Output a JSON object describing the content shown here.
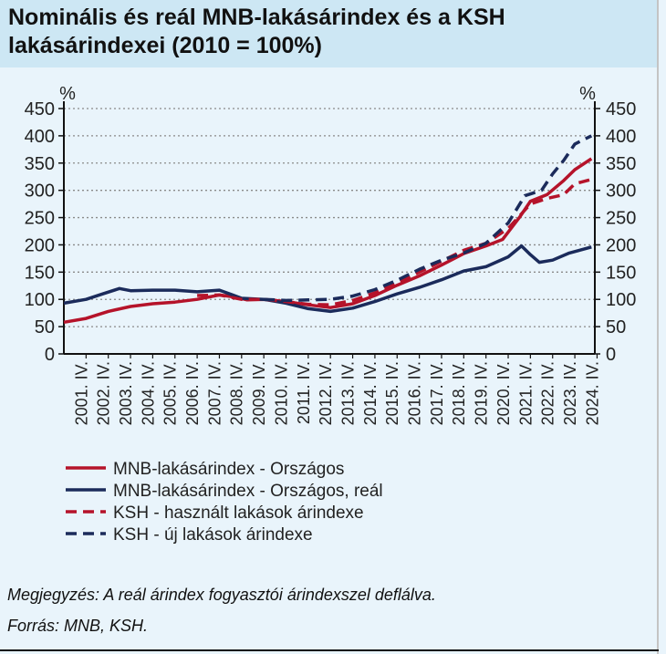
{
  "title": "Nominális és reál MNB-lakásárindex és a KSH lakásárindexei (2010 = 100%)",
  "note": "Megjegyzés: A reál árindex fogyasztói árindexszel deflálva.",
  "source": "Forrás: MNB, KSH.",
  "chart_data": {
    "type": "line",
    "y_unit_left": "%",
    "y_unit_right": "%",
    "ylim": [
      0,
      450
    ],
    "yticks": [
      0,
      50,
      100,
      150,
      200,
      250,
      300,
      350,
      400,
      450
    ],
    "grid": "horizontal dotted",
    "x_tick_labels": [
      "2001. IV.",
      "2002. IV.",
      "2003. IV.",
      "2004. IV.",
      "2005. IV.",
      "2006. IV.",
      "2007. IV.",
      "2008. IV.",
      "2009. IV.",
      "2010. IV.",
      "2011. IV.",
      "2012. IV.",
      "2013. IV.",
      "2014. IV.",
      "2015. IV.",
      "2016. IV.",
      "2017. IV.",
      "2018. IV.",
      "2019. IV.",
      "2020. IV.",
      "2021. IV.",
      "2022. IV.",
      "2023. IV.",
      "2024. IV."
    ],
    "x_start": 2001.0,
    "x_end": 2024.9,
    "legend_position": "bottom",
    "series": [
      {
        "name": "MNB-lakásárindex - Országos",
        "color": "#b5132a",
        "dash": false,
        "points": [
          [
            2001.0,
            58
          ],
          [
            2002.0,
            65
          ],
          [
            2003.0,
            78
          ],
          [
            2004.0,
            87
          ],
          [
            2005.0,
            92
          ],
          [
            2006.0,
            95
          ],
          [
            2007.0,
            100
          ],
          [
            2008.0,
            108
          ],
          [
            2008.75,
            104
          ],
          [
            2009.25,
            99
          ],
          [
            2010.0,
            100
          ],
          [
            2011.0,
            96
          ],
          [
            2012.0,
            90
          ],
          [
            2013.0,
            85
          ],
          [
            2014.0,
            92
          ],
          [
            2015.0,
            107
          ],
          [
            2016.0,
            126
          ],
          [
            2017.0,
            143
          ],
          [
            2018.0,
            163
          ],
          [
            2019.0,
            184
          ],
          [
            2020.0,
            198
          ],
          [
            2020.75,
            210
          ],
          [
            2021.5,
            250
          ],
          [
            2022.0,
            280
          ],
          [
            2022.75,
            292
          ],
          [
            2023.5,
            318
          ],
          [
            2024.0,
            338
          ],
          [
            2024.75,
            358
          ]
        ]
      },
      {
        "name": "MNB-lakásárindex - Országos, reál",
        "color": "#1b2b5b",
        "dash": false,
        "points": [
          [
            2001.0,
            93
          ],
          [
            2002.0,
            100
          ],
          [
            2002.75,
            110
          ],
          [
            2003.5,
            120
          ],
          [
            2004.0,
            116
          ],
          [
            2005.0,
            117
          ],
          [
            2006.0,
            117
          ],
          [
            2007.0,
            114
          ],
          [
            2008.0,
            117
          ],
          [
            2009.0,
            102
          ],
          [
            2010.0,
            100
          ],
          [
            2011.0,
            93
          ],
          [
            2012.0,
            83
          ],
          [
            2013.0,
            78
          ],
          [
            2014.0,
            84
          ],
          [
            2015.0,
            96
          ],
          [
            2016.0,
            110
          ],
          [
            2017.0,
            122
          ],
          [
            2018.0,
            136
          ],
          [
            2019.0,
            152
          ],
          [
            2020.0,
            160
          ],
          [
            2021.0,
            178
          ],
          [
            2021.6,
            198
          ],
          [
            2022.0,
            182
          ],
          [
            2022.4,
            168
          ],
          [
            2023.0,
            172
          ],
          [
            2023.75,
            185
          ],
          [
            2024.75,
            196
          ]
        ]
      },
      {
        "name": "KSH - használt lakások árindexe",
        "color": "#b5132a",
        "dash": true,
        "points": [
          [
            2007.0,
            107
          ],
          [
            2008.0,
            108
          ],
          [
            2009.0,
            100
          ],
          [
            2010.0,
            100
          ],
          [
            2011.0,
            96
          ],
          [
            2012.0,
            91
          ],
          [
            2013.0,
            90
          ],
          [
            2014.0,
            98
          ],
          [
            2015.0,
            112
          ],
          [
            2016.0,
            130
          ],
          [
            2017.0,
            150
          ],
          [
            2018.0,
            170
          ],
          [
            2019.0,
            190
          ],
          [
            2020.0,
            203
          ],
          [
            2021.0,
            230
          ],
          [
            2022.0,
            275
          ],
          [
            2022.75,
            285
          ],
          [
            2023.5,
            292
          ],
          [
            2024.0,
            312
          ],
          [
            2024.75,
            320
          ]
        ]
      },
      {
        "name": "KSH - új lakások árindexe",
        "color": "#1b2b5b",
        "dash": true,
        "points": [
          [
            2010.0,
            100
          ],
          [
            2011.0,
            98
          ],
          [
            2012.0,
            99
          ],
          [
            2013.0,
            100
          ],
          [
            2014.0,
            106
          ],
          [
            2015.0,
            118
          ],
          [
            2016.0,
            135
          ],
          [
            2017.0,
            155
          ],
          [
            2018.0,
            172
          ],
          [
            2019.0,
            185
          ],
          [
            2020.0,
            203
          ],
          [
            2021.0,
            240
          ],
          [
            2021.75,
            290
          ],
          [
            2022.5,
            300
          ],
          [
            2023.0,
            330
          ],
          [
            2023.5,
            355
          ],
          [
            2024.0,
            385
          ],
          [
            2024.75,
            400
          ]
        ]
      }
    ]
  }
}
